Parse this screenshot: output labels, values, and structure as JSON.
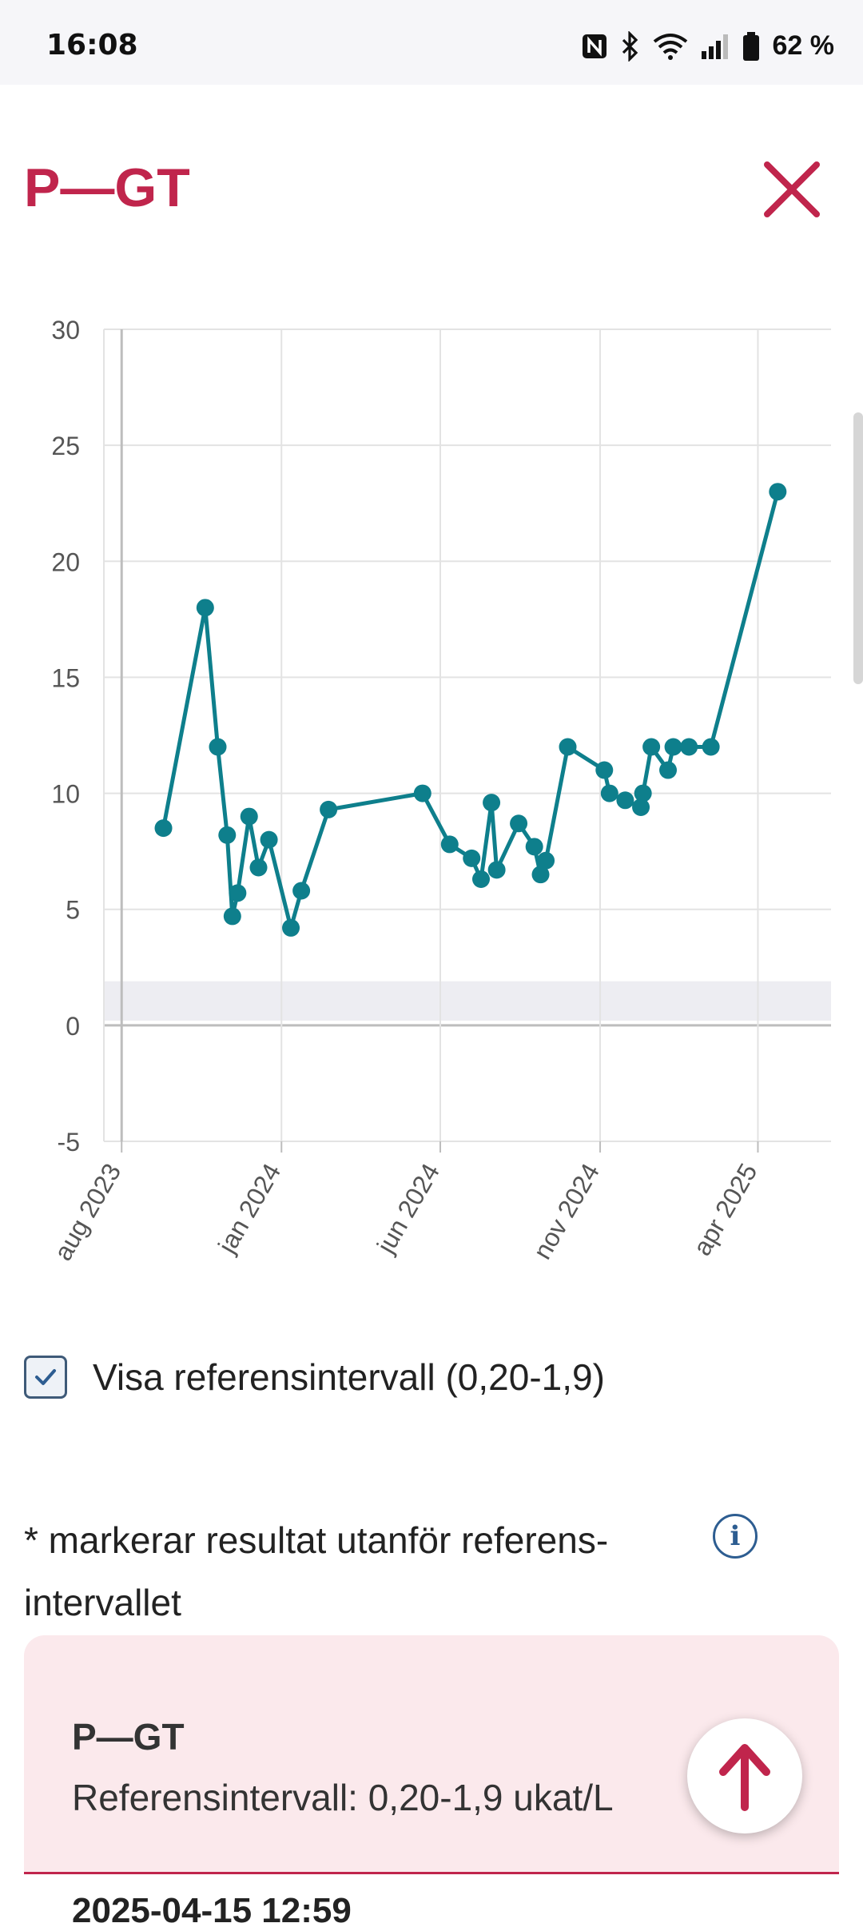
{
  "status_bar": {
    "time": "16:08",
    "battery": "62 %",
    "icons": [
      "nfc-icon",
      "bluetooth-icon",
      "wifi-icon",
      "signal-icon",
      "battery-icon"
    ]
  },
  "header": {
    "title": "P—GT",
    "close_icon": "close-icon"
  },
  "colors": {
    "accent": "#c0254c",
    "series": "#0e7f8c",
    "reference_band": "#ededf2",
    "card_bg": "#fbe9ec"
  },
  "chart_data": {
    "type": "line",
    "title": "",
    "xlabel": "",
    "ylabel": "",
    "ylim": [
      -5,
      30
    ],
    "yticks": [
      "30",
      "25",
      "20",
      "15",
      "10",
      "5",
      "0",
      "-5"
    ],
    "xtick_labels": [
      "aug 2023",
      "jan 2024",
      "jun 2024",
      "nov 2024",
      "apr 2025"
    ],
    "xtick_dates": [
      "2023-08-01",
      "2024-01-01",
      "2024-06-01",
      "2024-11-01",
      "2025-04-01"
    ],
    "x_range": [
      "2023-07-15",
      "2025-06-10"
    ],
    "reference_band": [
      0.2,
      1.9
    ],
    "grid": true,
    "series": [
      {
        "x": [
          "2023-09-10",
          "2023-10-20",
          "2023-11-01",
          "2023-11-10",
          "2023-11-15",
          "2023-11-20",
          "2023-12-01",
          "2023-12-10",
          "2023-12-20",
          "2024-01-10",
          "2024-01-20",
          "2024-02-15",
          "2024-05-15",
          "2024-06-10",
          "2024-07-01",
          "2024-07-10",
          "2024-07-20",
          "2024-07-25",
          "2024-08-15",
          "2024-08-30",
          "2024-09-05",
          "2024-09-10",
          "2024-10-01",
          "2024-11-05",
          "2024-11-10",
          "2024-11-25",
          "2024-12-10",
          "2024-12-12",
          "2024-12-20",
          "2025-01-05",
          "2025-01-10",
          "2025-01-25",
          "2025-02-15",
          "2025-04-20"
        ],
        "y": [
          8.5,
          18,
          12,
          8.2,
          4.7,
          5.7,
          9,
          6.8,
          8,
          4.2,
          5.8,
          9.3,
          10,
          7.8,
          7.2,
          6.3,
          9.6,
          6.7,
          8.7,
          7.7,
          6.5,
          7.1,
          12,
          11,
          10,
          9.7,
          9.4,
          10,
          12,
          11,
          12,
          12,
          12,
          23
        ]
      }
    ]
  },
  "reference_toggle": {
    "checked": true,
    "label": "Visa referensintervall (0,20-1,9)"
  },
  "note": {
    "text": "* markerar resultat utanför referens- intervallet",
    "info_icon": "info-icon"
  },
  "card": {
    "title": "P—GT",
    "reference": "Referensintervall: 0,20-1,9 ukat/L",
    "first_date": "2025-04-15 12:59"
  }
}
